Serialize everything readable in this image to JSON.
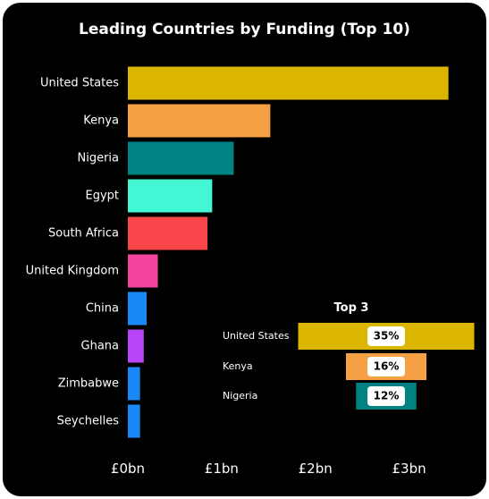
{
  "chart_data": [
    {
      "type": "bar",
      "orientation": "horizontal",
      "title": "Leading Countries by Funding (Top 10)",
      "categories": [
        "United States",
        "Kenya",
        "Nigeria",
        "Egypt",
        "South Africa",
        "United Kingdom",
        "China",
        "Ghana",
        "Zimbabwe",
        "Seychelles"
      ],
      "values": [
        3.42,
        1.52,
        1.13,
        0.9,
        0.85,
        0.32,
        0.2,
        0.17,
        0.13,
        0.13
      ],
      "unit": "£bn",
      "colors": [
        "#dab600",
        "#f5a045",
        "#008282",
        "#43f7d5",
        "#f8464a",
        "#f544a0",
        "#1a89f7",
        "#b845f5",
        "#1a89f7",
        "#1a89f7"
      ],
      "xlim": [
        0,
        3.5
      ],
      "xticks": [
        0,
        1,
        2,
        3
      ],
      "xtick_labels": [
        "£0bn",
        "£1bn",
        "£2bn",
        "£3bn"
      ],
      "grid": false,
      "legend": false
    },
    {
      "type": "bar",
      "subtype": "funnel",
      "title": "Top 3",
      "categories": [
        "United States",
        "Kenya",
        "Nigeria"
      ],
      "values": [
        35,
        16,
        12
      ],
      "value_labels": [
        "35%",
        "16%",
        "12%"
      ],
      "unit": "%",
      "colors": [
        "#dab600",
        "#f5a045",
        "#008282"
      ]
    }
  ]
}
